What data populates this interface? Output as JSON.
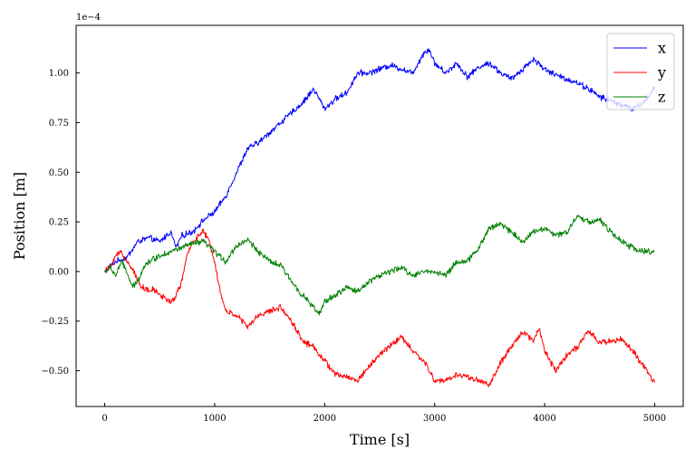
{
  "chart_data": {
    "type": "line",
    "title": "",
    "xlabel": "Time [s]",
    "ylabel": "Position [m]",
    "y_offset_label": "1e−4",
    "y_scale": 0.0001,
    "xlim": [
      -260,
      5260
    ],
    "ylim": [
      -0.68,
      1.24
    ],
    "xticks": [
      0,
      1000,
      2000,
      3000,
      4000,
      5000
    ],
    "xtick_labels": [
      "0",
      "1000",
      "2000",
      "3000",
      "4000",
      "5000"
    ],
    "yticks": [
      -0.5,
      -0.25,
      0.0,
      0.25,
      0.5,
      0.75,
      1.0
    ],
    "ytick_labels": [
      "−0.50",
      "−0.25",
      "0.00",
      "0.25",
      "0.50",
      "0.75",
      "1.00"
    ],
    "grid": false,
    "legend_position": "top-right",
    "noise_amplitude": 0.012,
    "series": [
      {
        "name": "x",
        "color": "#0000ff",
        "x": [
          0,
          100,
          200,
          300,
          400,
          500,
          600,
          650,
          700,
          800,
          900,
          1000,
          1100,
          1200,
          1300,
          1400,
          1500,
          1600,
          1700,
          1800,
          1900,
          2000,
          2100,
          2200,
          2300,
          2400,
          2500,
          2600,
          2700,
          2800,
          2900,
          2950,
          3000,
          3100,
          3200,
          3300,
          3400,
          3500,
          3600,
          3700,
          3800,
          3900,
          4000,
          4100,
          4200,
          4300,
          4400,
          4500,
          4600,
          4700,
          4800,
          4900,
          5000
        ],
        "values": [
          0.0,
          0.05,
          0.07,
          0.15,
          0.17,
          0.15,
          0.2,
          0.12,
          0.18,
          0.2,
          0.26,
          0.3,
          0.38,
          0.5,
          0.62,
          0.65,
          0.7,
          0.75,
          0.8,
          0.85,
          0.92,
          0.82,
          0.87,
          0.9,
          1.0,
          1.0,
          1.02,
          1.04,
          1.02,
          1.0,
          1.1,
          1.12,
          1.05,
          1.0,
          1.05,
          0.98,
          1.03,
          1.05,
          1.0,
          0.97,
          1.02,
          1.07,
          1.02,
          0.99,
          0.97,
          0.95,
          0.92,
          0.88,
          0.86,
          0.84,
          0.82,
          0.85,
          0.93
        ]
      },
      {
        "name": "y",
        "color": "#ff0000",
        "x": [
          0,
          50,
          100,
          150,
          200,
          250,
          300,
          350,
          400,
          450,
          500,
          550,
          600,
          650,
          700,
          750,
          800,
          850,
          900,
          950,
          1000,
          1050,
          1100,
          1200,
          1300,
          1400,
          1500,
          1600,
          1700,
          1800,
          1900,
          2000,
          2100,
          2200,
          2300,
          2400,
          2500,
          2600,
          2700,
          2800,
          2900,
          3000,
          3100,
          3200,
          3300,
          3400,
          3500,
          3600,
          3700,
          3800,
          3900,
          3950,
          4000,
          4100,
          4200,
          4300,
          4400,
          4500,
          4600,
          4700,
          4800,
          4900,
          5000
        ],
        "values": [
          0.0,
          0.02,
          0.08,
          0.1,
          0.05,
          0.02,
          -0.05,
          -0.08,
          -0.1,
          -0.09,
          -0.12,
          -0.13,
          -0.16,
          -0.12,
          -0.05,
          0.08,
          0.15,
          0.18,
          0.2,
          0.15,
          0.05,
          -0.1,
          -0.2,
          -0.22,
          -0.28,
          -0.22,
          -0.2,
          -0.18,
          -0.25,
          -0.35,
          -0.38,
          -0.45,
          -0.52,
          -0.53,
          -0.55,
          -0.48,
          -0.42,
          -0.37,
          -0.33,
          -0.4,
          -0.45,
          -0.55,
          -0.55,
          -0.52,
          -0.53,
          -0.55,
          -0.57,
          -0.46,
          -0.38,
          -0.3,
          -0.35,
          -0.28,
          -0.4,
          -0.5,
          -0.42,
          -0.38,
          -0.3,
          -0.36,
          -0.35,
          -0.34,
          -0.4,
          -0.48,
          -0.56
        ]
      },
      {
        "name": "z",
        "color": "#008000",
        "x": [
          0,
          50,
          100,
          150,
          200,
          250,
          300,
          350,
          400,
          500,
          600,
          700,
          800,
          900,
          1000,
          1100,
          1200,
          1300,
          1400,
          1500,
          1600,
          1700,
          1800,
          1900,
          1950,
          2000,
          2100,
          2200,
          2300,
          2400,
          2500,
          2600,
          2700,
          2800,
          2900,
          3000,
          3100,
          3200,
          3300,
          3400,
          3500,
          3600,
          3700,
          3800,
          3900,
          4000,
          4100,
          4200,
          4300,
          4400,
          4500,
          4600,
          4700,
          4800,
          4900,
          5000
        ],
        "values": [
          0.0,
          0.02,
          -0.02,
          0.05,
          0.0,
          -0.08,
          -0.05,
          0.02,
          0.05,
          0.08,
          0.1,
          0.12,
          0.14,
          0.15,
          0.1,
          0.05,
          0.13,
          0.16,
          0.1,
          0.05,
          0.03,
          -0.05,
          -0.12,
          -0.18,
          -0.22,
          -0.15,
          -0.12,
          -0.08,
          -0.1,
          -0.05,
          -0.02,
          0.0,
          0.02,
          -0.02,
          0.0,
          0.0,
          -0.02,
          0.05,
          0.05,
          0.12,
          0.22,
          0.24,
          0.2,
          0.15,
          0.2,
          0.22,
          0.18,
          0.2,
          0.28,
          0.25,
          0.26,
          0.2,
          0.15,
          0.12,
          0.1,
          0.1
        ]
      }
    ]
  }
}
